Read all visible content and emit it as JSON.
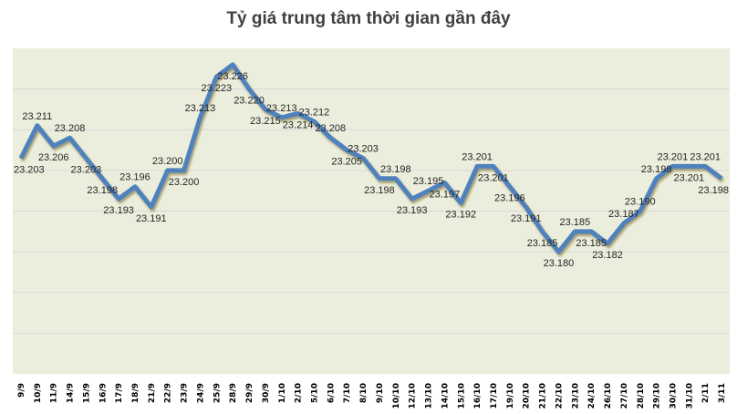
{
  "chart_data": {
    "type": "line",
    "title": "Tỷ giá trung tâm thời gian gần đây",
    "xlabel": "",
    "ylabel": "",
    "ylim": [
      23.15,
      23.23
    ],
    "grid": true,
    "categories": [
      "9/9",
      "10/9",
      "11/9",
      "14/9",
      "15/9",
      "16/9",
      "17/9",
      "18/9",
      "21/9",
      "22/9",
      "23/9",
      "24/9",
      "25/9",
      "28/9",
      "29/9",
      "30/9",
      "1/10",
      "2/10",
      "5/10",
      "6/10",
      "7/10",
      "8/10",
      "9/10",
      "10/10",
      "12/10",
      "13/10",
      "14/10",
      "15/10",
      "16/10",
      "17/10",
      "19/10",
      "20/10",
      "21/10",
      "22/10",
      "23/10",
      "24/10",
      "26/10",
      "27/10",
      "28/10",
      "29/10",
      "30/10",
      "31/10",
      "2/11",
      "3/11"
    ],
    "values": [
      23.203,
      23.211,
      23.206,
      23.208,
      23.203,
      23.198,
      23.193,
      23.196,
      23.191,
      23.2,
      23.2,
      23.213,
      23.223,
      23.226,
      23.22,
      23.215,
      23.213,
      23.214,
      23.212,
      23.208,
      23.205,
      23.203,
      23.198,
      23.198,
      23.193,
      23.195,
      23.197,
      23.192,
      23.201,
      23.201,
      23.196,
      23.191,
      23.185,
      23.18,
      23.185,
      23.185,
      23.182,
      23.187,
      23.19,
      23.198,
      23.201,
      23.201,
      23.201,
      23.198
    ],
    "data_labels": [
      "23.203",
      "23.211",
      "23.206",
      "23.208",
      "23.203",
      "23.198",
      "23.193",
      "23.196",
      "23.191",
      "23.200",
      "23.200",
      "23.213",
      "23.223",
      "23.226",
      "23.220",
      "23.215",
      "23.213",
      "23.214",
      "23.212",
      "23.208",
      "23.205",
      "23.203",
      "23.198",
      "23.198",
      "23.193",
      "23.195",
      "23.197",
      "23.192",
      "23.201",
      "23.201",
      "23.196",
      "23.191",
      "23.185",
      "23.180",
      "23.185",
      "23.185",
      "23.182",
      "23.187",
      "23.190",
      "23.198",
      "23.201",
      "23.201",
      "23.201",
      "23.198"
    ],
    "colors": {
      "line": "#4f81bd",
      "plot_bg": "#ebeedc",
      "grid": "#d9d9d9"
    }
  }
}
